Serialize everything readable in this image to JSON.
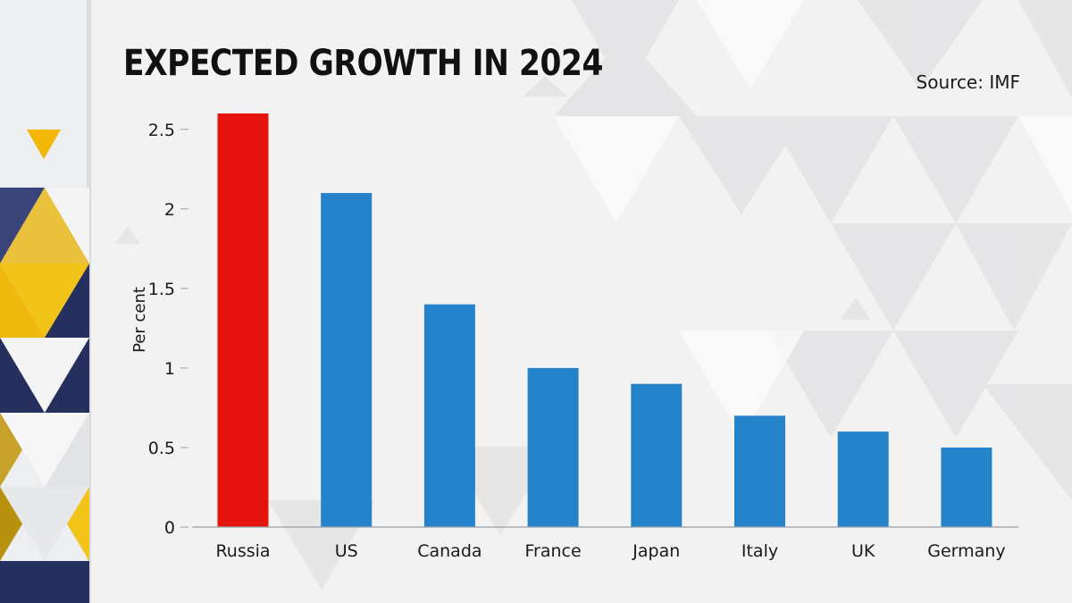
{
  "title": "EXPECTED GROWTH IN 2024",
  "source": "Source: IMF",
  "colors": {
    "highlight": "#e5140f",
    "bar": "#2583cb",
    "navy": "#26305e",
    "yellow": "#f2c318",
    "axis": "#9aa0a6"
  },
  "chart_data": {
    "type": "bar",
    "title": "EXPECTED GROWTH IN 2024",
    "ylabel": "Per cent",
    "xlabel": "",
    "ylim": [
      0,
      2.6
    ],
    "yticks": [
      0,
      0.5,
      1,
      1.5,
      2,
      2.5
    ],
    "ytick_labels": [
      "0",
      "0.5",
      "1",
      "1.5",
      "2",
      "2.5"
    ],
    "categories": [
      "Russia",
      "US",
      "Canada",
      "France",
      "Japan",
      "Italy",
      "UK",
      "Germany"
    ],
    "values": [
      2.6,
      2.1,
      1.4,
      1.0,
      0.9,
      0.7,
      0.6,
      0.5
    ],
    "highlight": [
      "Russia"
    ],
    "grid": false,
    "legend": "none"
  }
}
